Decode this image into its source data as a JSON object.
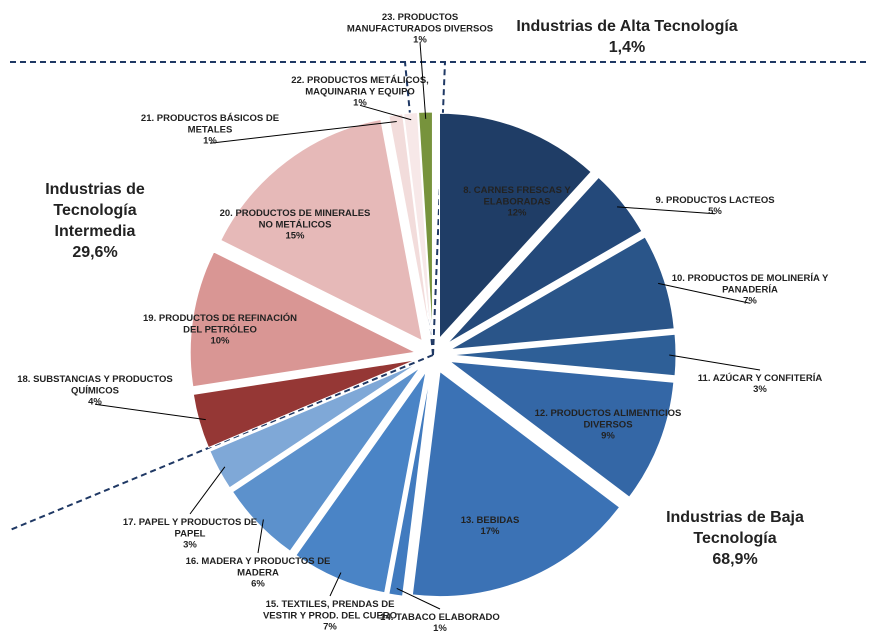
{
  "chart_data": {
    "type": "pie",
    "categories": [
      "8. CARNES FRESCAS Y\nELABORADAS",
      "9. PRODUCTOS LACTEOS",
      "10. PRODUCTOS DE MOLINERÍA Y\nPANADERÍA",
      "11. AZÚCAR Y CONFITERÍA",
      "12. PRODUCTOS ALIMENTICIOS\nDIVERSOS",
      "13. BEBIDAS",
      "14. TABACO ELABORADO",
      "15. TEXTILES,  PRENDAS DE\nVESTIR Y PROD.  DEL CUERO",
      "16. MADERA Y PRODUCTOS DE\nMADERA",
      "17. PAPEL Y PRODUCTOS DE\nPAPEL",
      "18. SUBSTANCIAS Y PRODUCTOS\nQUÍMICOS",
      "19. PRODUCTOS DE REFINACIÓN\nDEL PETRÓLEO",
      "20. PRODUCTOS DE MINERALES\nNO METÁLICOS",
      "21. PRODUCTOS BÁSICOS DE\nMETALES",
      "22. PRODUCTOS METÁLICOS,\nMAQUINARIA Y EQUIPO",
      "23. PRODUCTOS\nMANUFACTURADOS DIVERSOS"
    ],
    "values": [
      12,
      5,
      7,
      3,
      9,
      17,
      1,
      7,
      6,
      3,
      4,
      10,
      15,
      1,
      1,
      1
    ],
    "value_labels": [
      "12%",
      "5%",
      "7%",
      "3%",
      "9%",
      "17%",
      "1%",
      "7%",
      "6%",
      "3%",
      "4%",
      "10%",
      "15%",
      "1%",
      "1%",
      "1%"
    ],
    "colors": [
      "#1f3d66",
      "#24497a",
      "#2a5589",
      "#2e5f97",
      "#3467a6",
      "#3b72b5",
      "#417bbf",
      "#4a84c6",
      "#5c91cc",
      "#7fa8d7",
      "#953735",
      "#d99694",
      "#e6b9b8",
      "#f2dcdb",
      "#f7e8e8",
      "#77933c"
    ],
    "annotations": [
      {
        "text": "Industrias de Alta Tecnología",
        "value": "1,4%",
        "color": "#9bbb59"
      },
      {
        "text": "Industrias de\nTecnología\nIntermedia",
        "value": "29,6%",
        "color": "#e46c6c"
      },
      {
        "text": "Industrias de Baja\nTecnología",
        "value": "68,9%",
        "color": "#1f6fb5"
      }
    ]
  }
}
